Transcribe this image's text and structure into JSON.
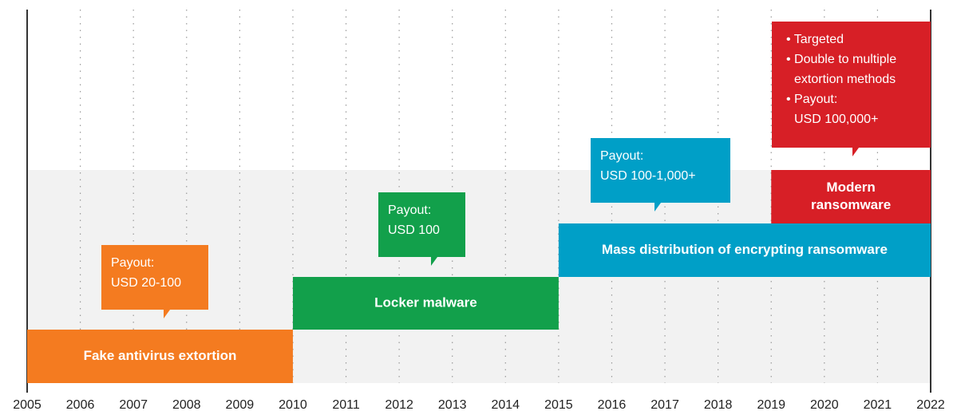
{
  "chart_data": {
    "type": "timeline",
    "xlim": [
      2005,
      2022
    ],
    "xticks": [
      2005,
      2006,
      2007,
      2008,
      2009,
      2010,
      2011,
      2012,
      2013,
      2014,
      2015,
      2016,
      2017,
      2018,
      2019,
      2020,
      2021,
      2022
    ],
    "grid": true,
    "series": [
      {
        "name": "Fake antivirus extortion",
        "color": "#f47b20",
        "start": 2005,
        "end": 2010,
        "callout": [
          "Payout:",
          "USD 20-100"
        ]
      },
      {
        "name": "Locker malware",
        "color": "#12a04b",
        "start": 2010,
        "end": 2015,
        "callout": [
          "Payout:",
          "USD 100"
        ]
      },
      {
        "name": "Mass distribution of encrypting ransomware",
        "color": "#009fc7",
        "start": 2015,
        "end": 2022,
        "callout": [
          "Payout:",
          "USD 100-1,000+"
        ]
      },
      {
        "name": [
          "Modern",
          "ransomware"
        ],
        "color": "#d71f26",
        "start": 2019,
        "end": 2022,
        "callout": [
          "• Targeted",
          "• Double to multiple",
          "extortion methods",
          "• Payout:",
          "USD 100,000+"
        ]
      }
    ]
  }
}
